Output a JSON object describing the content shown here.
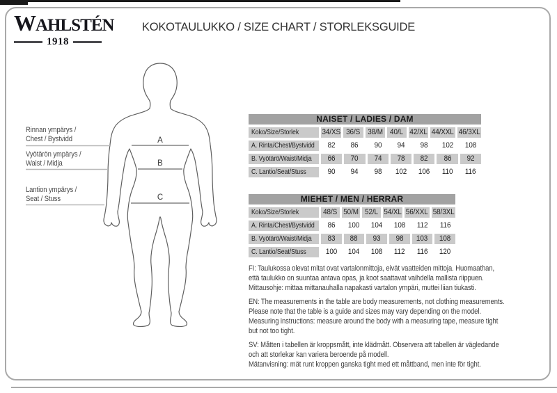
{
  "header": {
    "logo_name": "WAHLSTÉN",
    "logo_year": "1918",
    "title": "KOKOTAULUKKO / SIZE CHART / STORLEKSGUIDE"
  },
  "diagram": {
    "labels": [
      "Rinnan ympärys /\nChest / Bystvidd",
      "Vyötärön ympärys /\nWaist / Midja",
      "Lantion ympärys /\nSeat / Stuss"
    ],
    "markers": [
      "A",
      "B",
      "C"
    ]
  },
  "tables": [
    {
      "title": "NAISET / LADIES / DAM",
      "header": [
        "Koko/Size/Storlek",
        "34/XS",
        "36/S",
        "38/M",
        "40/L",
        "42/XL",
        "44/XXL",
        "46/3XL"
      ],
      "rows": [
        {
          "label": "A. Rinta/Chest/Bystvidd",
          "values": [
            "82",
            "86",
            "90",
            "94",
            "98",
            "102",
            "108"
          ],
          "shaded": false
        },
        {
          "label": "B. Vyötärö/Waist/Midja",
          "values": [
            "66",
            "70",
            "74",
            "78",
            "82",
            "86",
            "92"
          ],
          "shaded": true
        },
        {
          "label": "C. Lantio/Seat/Stuss",
          "values": [
            "90",
            "94",
            "98",
            "102",
            "106",
            "110",
            "116"
          ],
          "shaded": false
        }
      ]
    },
    {
      "title": "MIEHET / MEN / HERRAR",
      "header": [
        "Koko/Size/Storlek",
        "48/S",
        "50/M",
        "52/L",
        "54/XL",
        "56/XXL",
        "58/3XL"
      ],
      "rows": [
        {
          "label": "A. Rinta/Chest/Bystvidd",
          "values": [
            "86",
            "100",
            "104",
            "108",
            "112",
            "116"
          ],
          "shaded": false
        },
        {
          "label": "B. Vyötärö/Waist/Midja",
          "values": [
            "83",
            "88",
            "93",
            "98",
            "103",
            "108"
          ],
          "shaded": true
        },
        {
          "label": "C. Lantio/Seat/Stuss",
          "values": [
            "100",
            "104",
            "108",
            "112",
            "116",
            "120"
          ],
          "shaded": false
        }
      ]
    }
  ],
  "notes": {
    "fi": "FI: Taulukossa olevat mitat ovat vartalonmittoja, eivät vaatteiden mittoja. Huomaathan,\nettä taulukko on suuntaa antava opas, ja koot saattavat vaihdella mallista riippuen.\nMittausohje: mittaa mittanauhalla napakasti vartalon ympäri, muttei liian tiukasti.",
    "en": "EN: The measurements in the table are body measurements, not clothing measurements.\nPlease note that the table is a guide and sizes may vary depending on the model.\nMeasuring instructions: measure around the body with a measuring tape, measure tight\nbut not too tight.",
    "sv": "SV: Måtten i tabellen är kroppsmått, inte klädmått. Observera att tabellen är vägledande\noch att storlekar kan variera beroende på modell.\nMätanvisning: mät runt kroppen ganska tight med ett måttband, men inte för tight."
  },
  "colors": {
    "table_title_bg": "#a2a2a2",
    "cell_shade_bg": "#cacaca",
    "top_bar": "#1a1a1a",
    "frame_border": "#a9a9a9",
    "text": "#2d2d2d"
  }
}
